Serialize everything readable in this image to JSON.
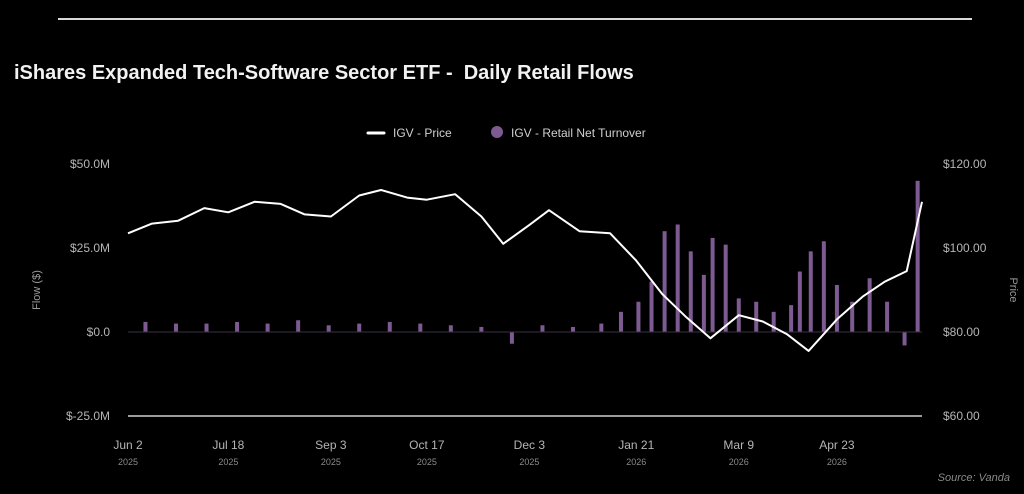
{
  "title": "iShares Expanded Tech-Software Sector ETF -  Daily Retail Flows",
  "source": "Source: Vanda",
  "colors": {
    "price": "#ffffff",
    "flow": "#7d5a92",
    "axis_text": "#b5b5b5",
    "background": "#000000"
  },
  "chart_data": {
    "type": "bar+line",
    "legend": {
      "placement": "top-center",
      "items": [
        {
          "label": "IGV - Price",
          "kind": "line"
        },
        {
          "label": "IGV - Retail Net Turnover",
          "kind": "dot"
        }
      ]
    },
    "ylabel_left": "Flow ($)",
    "ylabel_right": "Price",
    "y_left": {
      "lim": [
        -25,
        50
      ],
      "ticks": [
        50,
        25,
        0,
        -25
      ],
      "tick_labels": [
        "$50.0M",
        "$25.0M",
        "$0.0",
        "$-25.0M"
      ]
    },
    "y_right": {
      "lim": [
        60,
        120
      ],
      "ticks": [
        120,
        100,
        80,
        60
      ],
      "tick_labels": [
        "$120.00",
        "$100.00",
        "$80.00",
        "$60.00"
      ]
    },
    "x_ticks": [
      {
        "date": "2025-06-02",
        "label": "Jun 2",
        "year": "2025"
      },
      {
        "date": "2025-07-18",
        "label": "Jul 18",
        "year": "2025"
      },
      {
        "date": "2025-09-03",
        "label": "Sep 3",
        "year": "2025"
      },
      {
        "date": "2025-10-17",
        "label": "Oct 17",
        "year": "2025"
      },
      {
        "date": "2025-12-03",
        "label": "Dec 3",
        "year": "2025"
      },
      {
        "date": "2026-01-21",
        "label": "Jan 21",
        "year": "2026"
      },
      {
        "date": "2026-03-09",
        "label": "Mar 9",
        "year": "2026"
      },
      {
        "date": "2026-04-23",
        "label": "Apr 23",
        "year": "2026"
      }
    ],
    "series": [
      {
        "name": "IGV - Price",
        "axis": "right",
        "points": [
          [
            "2025-06-02",
            103.5
          ],
          [
            "2025-06-13",
            105.8
          ],
          [
            "2025-06-25",
            106.5
          ],
          [
            "2025-07-07",
            109.5
          ],
          [
            "2025-07-18",
            108.5
          ],
          [
            "2025-07-30",
            111.0
          ],
          [
            "2025-08-11",
            110.5
          ],
          [
            "2025-08-22",
            108.0
          ],
          [
            "2025-09-03",
            107.5
          ],
          [
            "2025-09-16",
            112.5
          ],
          [
            "2025-09-26",
            113.8
          ],
          [
            "2025-10-08",
            112.0
          ],
          [
            "2025-10-17",
            111.5
          ],
          [
            "2025-10-30",
            112.8
          ],
          [
            "2025-11-11",
            107.5
          ],
          [
            "2025-11-21",
            101.0
          ],
          [
            "2025-12-03",
            105.5
          ],
          [
            "2025-12-12",
            109.0
          ],
          [
            "2025-12-26",
            104.0
          ],
          [
            "2026-01-09",
            103.5
          ],
          [
            "2026-01-21",
            97.0
          ],
          [
            "2026-02-02",
            89.0
          ],
          [
            "2026-02-13",
            83.5
          ],
          [
            "2026-02-24",
            78.5
          ],
          [
            "2026-03-09",
            84.0
          ],
          [
            "2026-03-20",
            82.5
          ],
          [
            "2026-03-31",
            79.5
          ],
          [
            "2026-04-10",
            75.5
          ],
          [
            "2026-04-23",
            83.0
          ],
          [
            "2026-05-05",
            88.5
          ],
          [
            "2026-05-15",
            92.0
          ],
          [
            "2026-05-25",
            94.5
          ],
          [
            "2026-06-01",
            111.0
          ]
        ]
      },
      {
        "name": "IGV - Retail Net Turnover",
        "axis": "left",
        "unit": "$M",
        "points": [
          [
            "2025-06-10",
            3.0
          ],
          [
            "2025-06-24",
            2.5
          ],
          [
            "2025-07-08",
            2.5
          ],
          [
            "2025-07-22",
            3.0
          ],
          [
            "2025-08-05",
            2.5
          ],
          [
            "2025-08-19",
            3.5
          ],
          [
            "2025-09-02",
            2.0
          ],
          [
            "2025-09-16",
            2.5
          ],
          [
            "2025-09-30",
            3.0
          ],
          [
            "2025-10-14",
            2.5
          ],
          [
            "2025-10-28",
            2.0
          ],
          [
            "2025-11-11",
            1.5
          ],
          [
            "2025-11-25",
            -3.5
          ],
          [
            "2025-12-09",
            2.0
          ],
          [
            "2025-12-23",
            1.5
          ],
          [
            "2026-01-05",
            2.5
          ],
          [
            "2026-01-14",
            6.0
          ],
          [
            "2026-01-22",
            9.0
          ],
          [
            "2026-01-28",
            15.0
          ],
          [
            "2026-02-03",
            30.0
          ],
          [
            "2026-02-09",
            32.0
          ],
          [
            "2026-02-15",
            24.0
          ],
          [
            "2026-02-21",
            17.0
          ],
          [
            "2026-02-25",
            28.0
          ],
          [
            "2026-03-03",
            26.0
          ],
          [
            "2026-03-09",
            10.0
          ],
          [
            "2026-03-17",
            9.0
          ],
          [
            "2026-03-25",
            6.0
          ],
          [
            "2026-04-02",
            8.0
          ],
          [
            "2026-04-06",
            18.0
          ],
          [
            "2026-04-11",
            24.0
          ],
          [
            "2026-04-17",
            27.0
          ],
          [
            "2026-04-23",
            14.0
          ],
          [
            "2026-04-30",
            9.0
          ],
          [
            "2026-05-08",
            16.0
          ],
          [
            "2026-05-16",
            9.0
          ],
          [
            "2026-05-24",
            -4.0
          ],
          [
            "2026-05-30",
            45.0
          ]
        ]
      }
    ]
  }
}
